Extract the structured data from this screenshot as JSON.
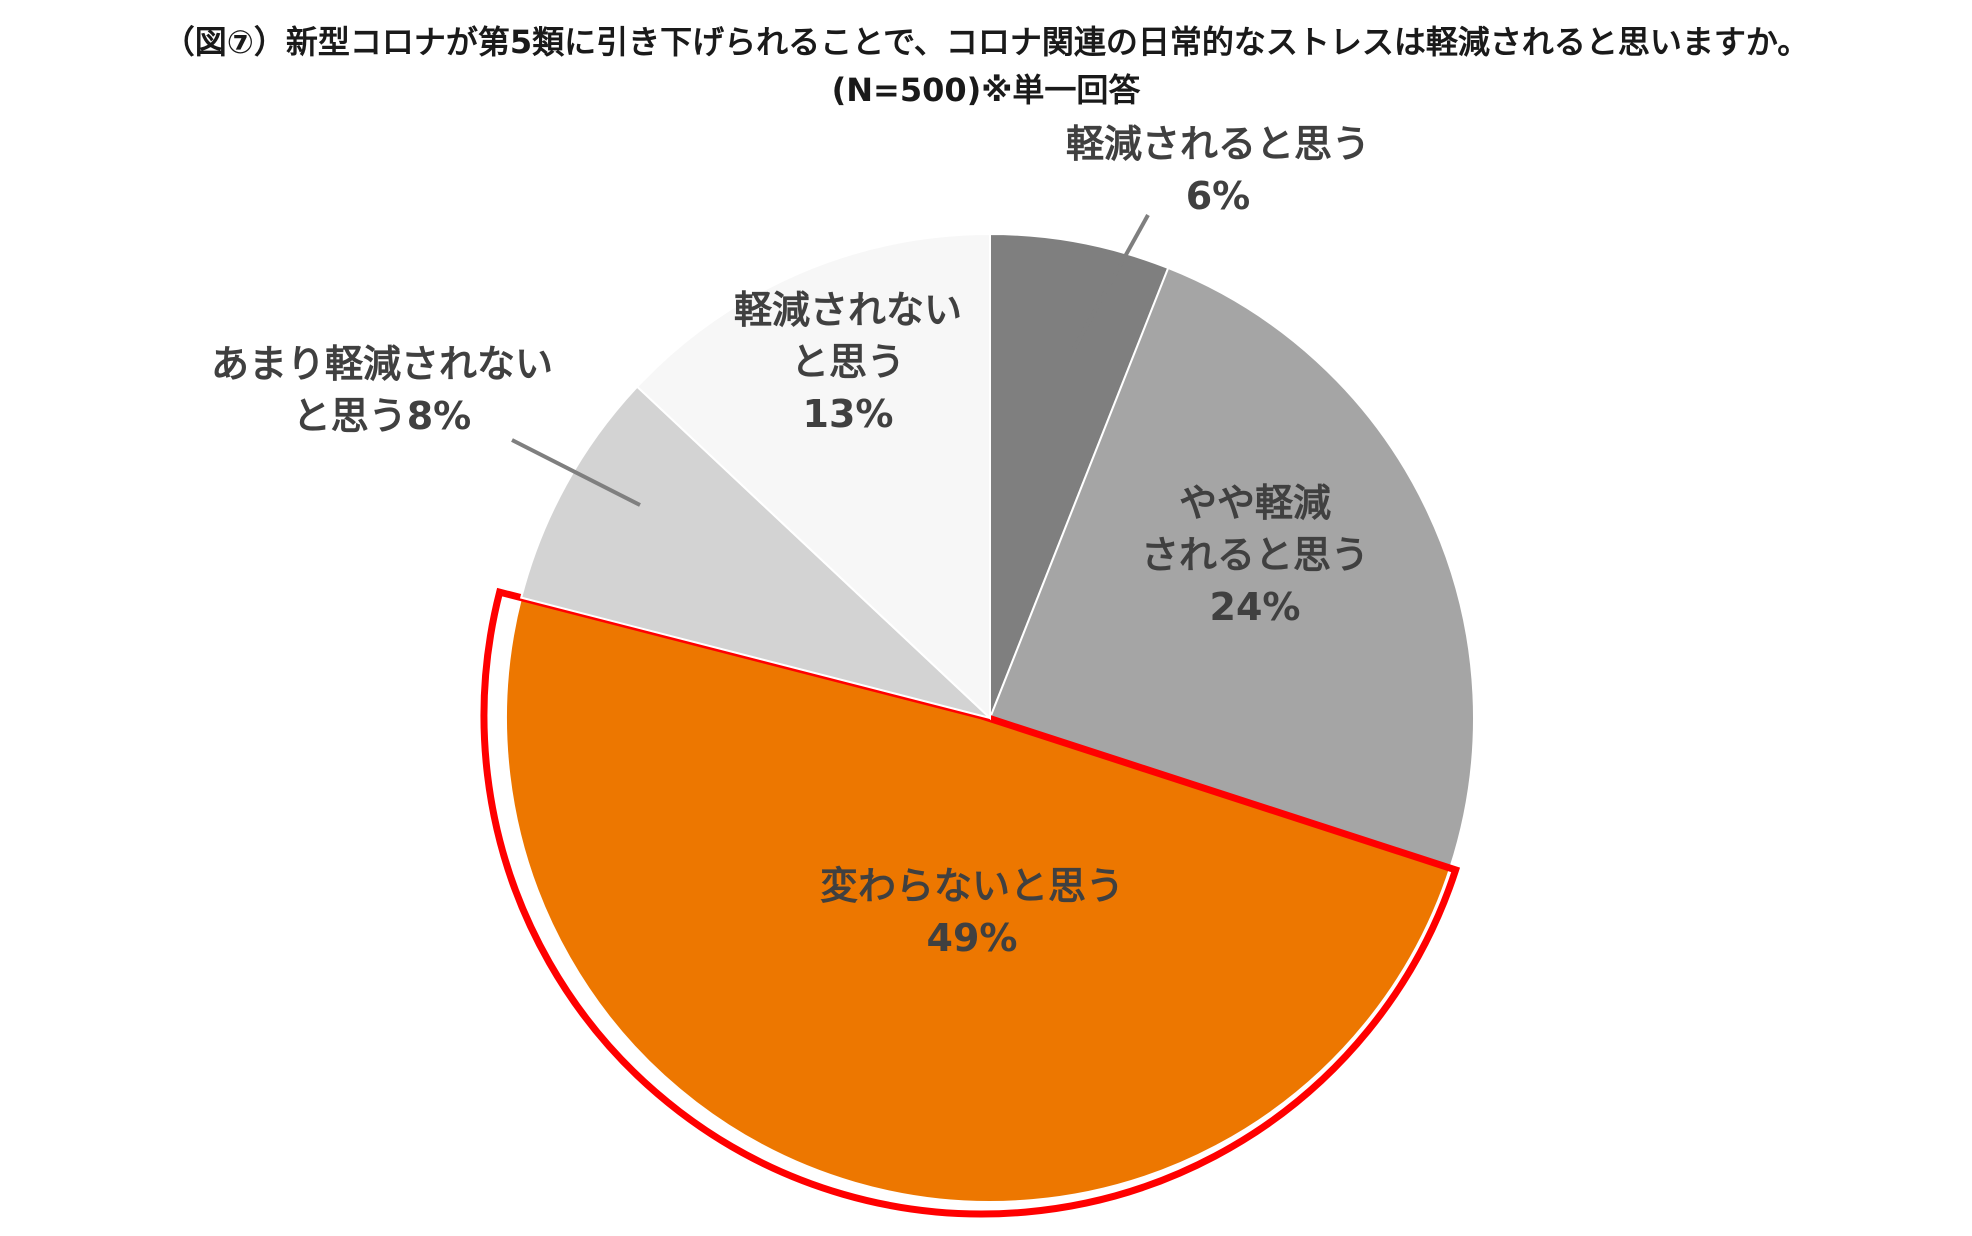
{
  "chart_data": {
    "type": "pie",
    "title": "（図⑦）新型コロナが第5類に引き下げられることで、コロナ関連の日常的なストレスは軽減されると思いますか。",
    "subtitle": "(N=500)※単一回答",
    "start_angle_deg": 0,
    "direction": "clockwise",
    "slices": [
      {
        "name": "軽減されると思う",
        "value": 6,
        "color": "#7f7f7f",
        "label_lines": [
          "軽減されると思う",
          "6%"
        ]
      },
      {
        "name": "やや軽減されると思う",
        "value": 24,
        "color": "#a5a5a5",
        "label_lines": [
          "やや軽減",
          "されると思う",
          "24%"
        ]
      },
      {
        "name": "変わらないと思う",
        "value": 49,
        "color": "#ed7700",
        "highlighted": true,
        "label_lines": [
          "変わらないと思う",
          "49%"
        ]
      },
      {
        "name": "あまり軽減されないと思う",
        "value": 8,
        "color": "#d3d3d3",
        "label_lines": [
          "あまり軽減されない",
          "と思う8%"
        ]
      },
      {
        "name": "軽減されないと思う",
        "value": 13,
        "color": "#f7f7f7",
        "label_lines": [
          "軽減されない",
          "と思う",
          "13%"
        ]
      }
    ],
    "highlight_color": "#ff0000"
  }
}
